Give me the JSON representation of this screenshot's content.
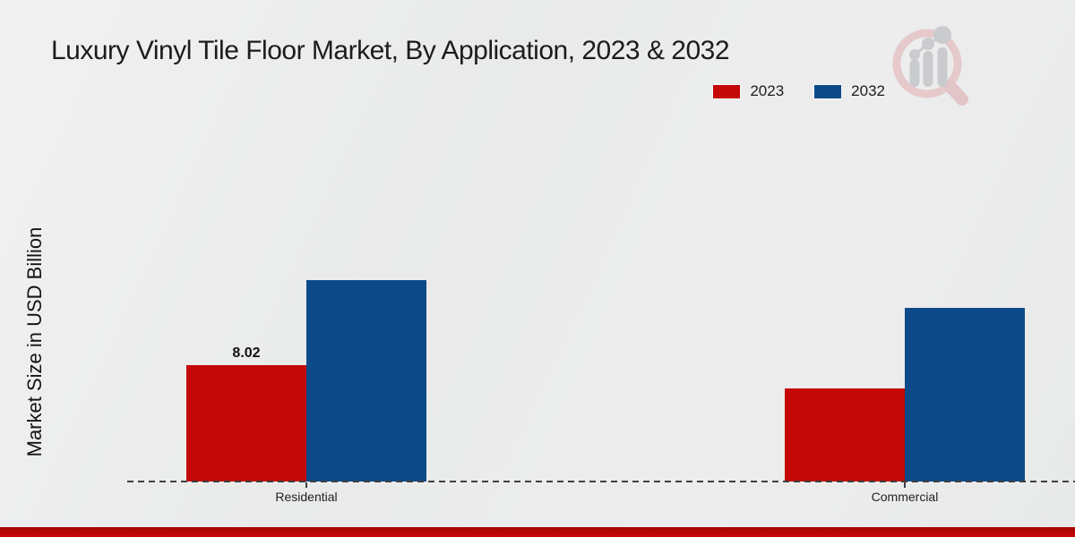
{
  "title": "Luxury Vinyl Tile Floor Market, By Application, 2023 & 2032",
  "ylabel": "Market Size in USD Billion",
  "chart_data": {
    "type": "bar",
    "categories": [
      "Residential",
      "Commercial"
    ],
    "series": [
      {
        "name": "2023",
        "color": "#c40707",
        "values": [
          8.02,
          6.4
        ]
      },
      {
        "name": "2032",
        "color": "#0c4a8a",
        "values": [
          13.9,
          12.0
        ]
      }
    ],
    "value_labels": {
      "residential_2023": "8.02"
    },
    "title": "Luxury Vinyl Tile Floor Market, By Application, 2023 & 2032",
    "xlabel": "",
    "ylabel": "Market Size in USD Billion",
    "ylim": [
      0,
      16
    ],
    "grid": false,
    "legend_position": "top-right",
    "baseline_style": "dashed"
  },
  "icons": {
    "brand_logo": "magnifier-bar-chart-logo"
  },
  "colors": {
    "series_2023": "#c40707",
    "series_2032": "#0c4a8a",
    "footer_band": "#b50505",
    "background": "#eaebeb",
    "axis_line": "#3f3f3f",
    "logo_ring": "#e6c6c8",
    "logo_bars": "#c6c8cb"
  }
}
